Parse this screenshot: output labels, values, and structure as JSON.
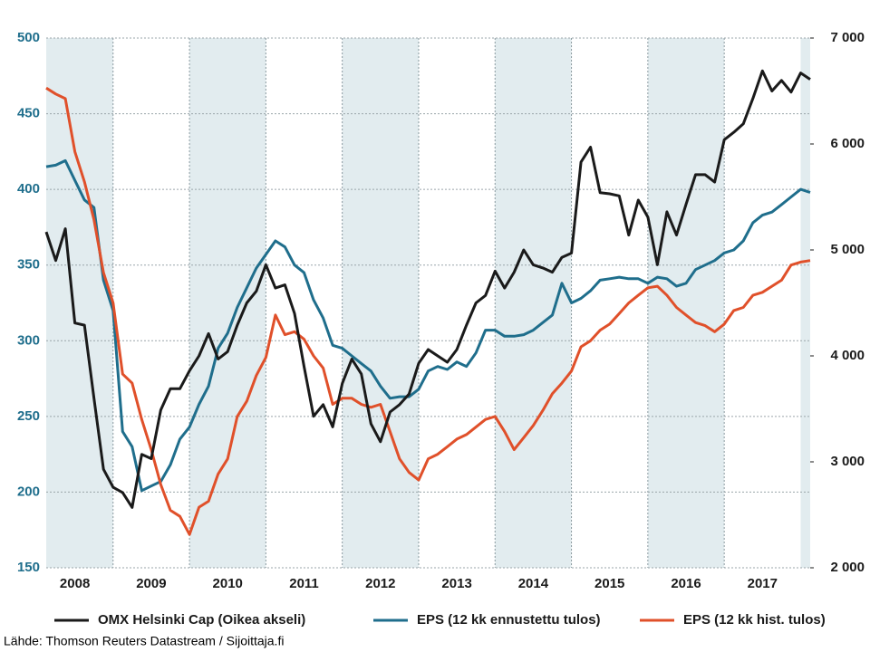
{
  "chart_data": {
    "type": "line",
    "x": [
      2008.125,
      2008.25,
      2008.375,
      2008.5,
      2008.625,
      2008.75,
      2008.875,
      2009,
      2009.125,
      2009.25,
      2009.375,
      2009.5,
      2009.625,
      2009.75,
      2009.875,
      2010,
      2010.125,
      2010.25,
      2010.375,
      2010.5,
      2010.625,
      2010.75,
      2010.875,
      2011,
      2011.125,
      2011.25,
      2011.375,
      2011.5,
      2011.625,
      2011.75,
      2011.875,
      2012,
      2012.125,
      2012.25,
      2012.375,
      2012.5,
      2012.625,
      2012.75,
      2012.875,
      2013,
      2013.125,
      2013.25,
      2013.375,
      2013.5,
      2013.625,
      2013.75,
      2013.875,
      2014,
      2014.125,
      2014.25,
      2014.375,
      2014.5,
      2014.625,
      2014.75,
      2014.875,
      2015,
      2015.125,
      2015.25,
      2015.375,
      2015.5,
      2015.625,
      2015.75,
      2015.875,
      2016,
      2016.125,
      2016.25,
      2016.375,
      2016.5,
      2016.625,
      2016.75,
      2016.875,
      2017,
      2017.125,
      2017.25,
      2017.375,
      2017.5,
      2017.625,
      2017.75,
      2017.875,
      2018,
      2018.125
    ],
    "series": [
      {
        "name": "OMX Helsinki Cap (Oikea akseli)",
        "color": "#1a1a1a",
        "axis": "y2",
        "values": [
          5170,
          4900,
          5200,
          4310,
          4290,
          3600,
          2930,
          2760,
          2710,
          2570,
          3070,
          3030,
          3490,
          3690,
          3690,
          3860,
          4000,
          4210,
          3970,
          4040,
          4290,
          4500,
          4610,
          4860,
          4640,
          4670,
          4400,
          3900,
          3430,
          3540,
          3330,
          3740,
          3970,
          3830,
          3360,
          3190,
          3470,
          3540,
          3640,
          3930,
          4060,
          4000,
          3940,
          4060,
          4290,
          4500,
          4570,
          4800,
          4640,
          4790,
          5000,
          4860,
          4830,
          4790,
          4930,
          4970,
          5830,
          5970,
          5540,
          5530,
          5510,
          5140,
          5470,
          5310,
          4860,
          5360,
          5140,
          5430,
          5710,
          5710,
          5640,
          6040,
          6110,
          6190,
          6430,
          6690,
          6500,
          6600,
          6490,
          6670,
          6610
        ]
      },
      {
        "name": "EPS (12 kk ennustettu tulos)",
        "color": "#1f6e8c",
        "values": [
          415,
          416,
          419,
          406,
          393,
          388,
          340,
          320,
          240,
          230,
          201,
          204,
          207,
          218,
          235,
          243,
          258,
          270,
          295,
          305,
          322,
          335,
          348,
          357,
          366,
          362,
          350,
          345,
          327,
          315,
          297,
          295,
          290,
          285,
          280,
          270,
          262,
          263,
          263,
          268,
          280,
          283,
          281,
          286,
          283,
          292,
          307,
          307,
          303,
          303,
          304,
          307,
          312,
          317,
          338,
          325,
          328,
          333,
          340,
          341,
          342,
          341,
          341,
          338,
          342,
          341,
          336,
          338,
          347,
          350,
          353,
          358,
          360,
          366,
          378,
          383,
          385,
          390,
          395,
          400,
          398
        ]
      },
      {
        "name": "EPS (12 kk hist. tulos)",
        "color": "#e0502a",
        "values": [
          467,
          463,
          460,
          425,
          405,
          380,
          345,
          325,
          278,
          272,
          248,
          228,
          205,
          188,
          184,
          172,
          190,
          194,
          212,
          222,
          250,
          260,
          277,
          289,
          317,
          304,
          306,
          301,
          290,
          282,
          258,
          262,
          262,
          258,
          256,
          258,
          240,
          222,
          213,
          208,
          222,
          225,
          230,
          235,
          238,
          243,
          248,
          250,
          240,
          228,
          236,
          244,
          254,
          265,
          272,
          280,
          296,
          300,
          307,
          311,
          318,
          325,
          330,
          335,
          336,
          330,
          322,
          317,
          312,
          310,
          306,
          311,
          320,
          322,
          330,
          332,
          336,
          340,
          350,
          352,
          353
        ]
      }
    ],
    "xlim": [
      2008.125,
      2018.125
    ],
    "xticks": [
      2008,
      2009,
      2010,
      2011,
      2012,
      2013,
      2014,
      2015,
      2016,
      2017
    ],
    "ylim": [
      150,
      500
    ],
    "yticks": [
      150,
      200,
      250,
      300,
      350,
      400,
      450,
      500
    ],
    "y2lim": [
      2000,
      7000
    ],
    "y2ticks": [
      {
        "value": 2000,
        "label": "2 000"
      },
      {
        "value": 3000,
        "label": "3 000"
      },
      {
        "value": 4000,
        "label": "4 000"
      },
      {
        "value": 5000,
        "label": "5 000"
      },
      {
        "value": 6000,
        "label": "6 000"
      },
      {
        "value": 7000,
        "label": "7 000"
      }
    ],
    "grid": true,
    "source": "Lähde: Thomson Reuters Datastream / Sijoittaja.fi"
  }
}
